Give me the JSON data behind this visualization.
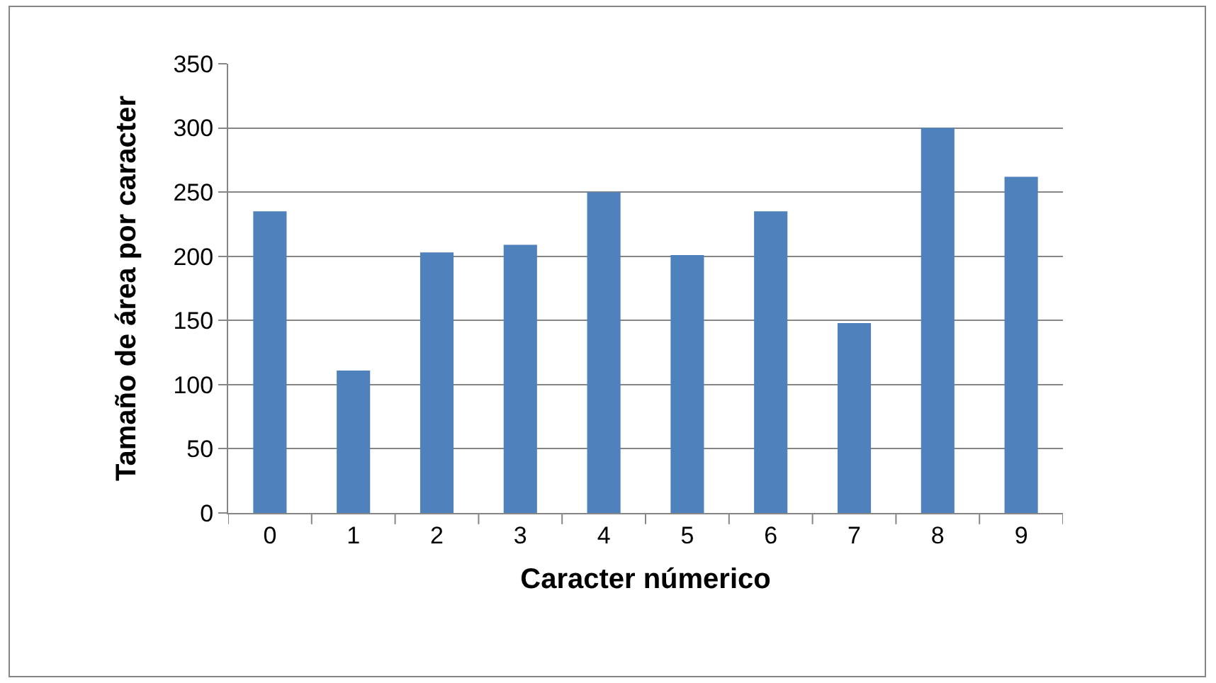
{
  "chart_data": {
    "type": "bar",
    "xlabel": "Caracter númerico",
    "ylabel": "Tamaño de área por caracter",
    "categories": [
      "0",
      "1",
      "2",
      "3",
      "4",
      "5",
      "6",
      "7",
      "8",
      "9"
    ],
    "values": [
      235,
      111,
      203,
      209,
      250,
      201,
      235,
      148,
      300,
      262
    ],
    "color": "#4f81bd",
    "ylim": [
      0,
      350
    ],
    "yticks": [
      0,
      50,
      100,
      150,
      200,
      250,
      300,
      350
    ],
    "grid": "y"
  }
}
